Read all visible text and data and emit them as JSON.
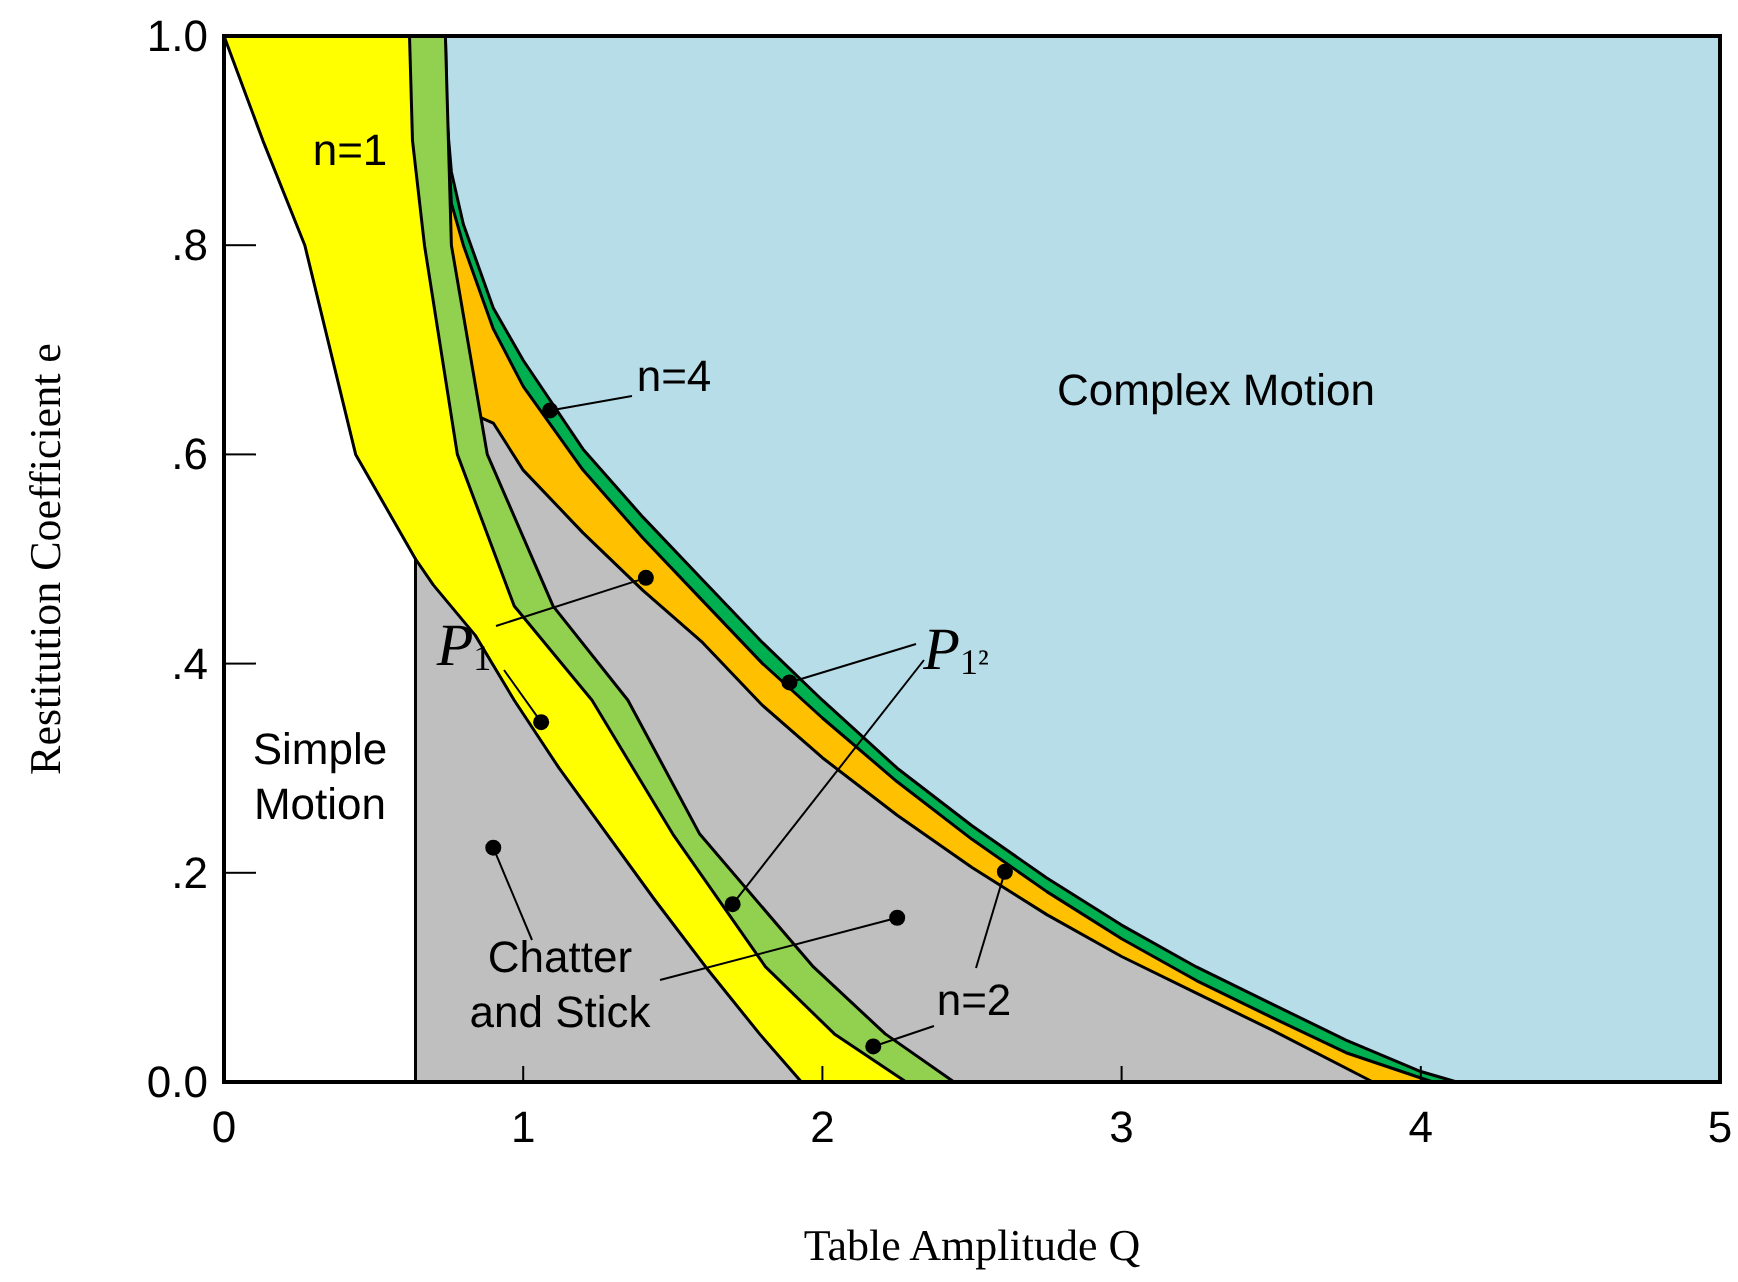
{
  "chart_data": {
    "type": "area",
    "xlabel": "Table Amplitude Q",
    "ylabel": "Restitution Coefficient e",
    "xlim": [
      0,
      5
    ],
    "ylim": [
      0,
      1
    ],
    "xticks": [
      0,
      1,
      2,
      3,
      4,
      5
    ],
    "yticks": [
      {
        "value": 0,
        "label": "0.0"
      },
      {
        "value": 0.2,
        "label": ".2"
      },
      {
        "value": 0.4,
        "label": ".4"
      },
      {
        "value": 0.6,
        "label": ".6"
      },
      {
        "value": 0.8,
        "label": ".8"
      },
      {
        "value": 1,
        "label": "1.0"
      }
    ],
    "series": [
      {
        "color": "#b6dde8",
        "x": [
          0.74,
          5
        ],
        "values": [
          1,
          1
        ]
      },
      {
        "color": "#00b050",
        "x": [
          0.74,
          0.745,
          0.76,
          0.8,
          0.9,
          1.0,
          1.2,
          1.4,
          1.6,
          1.8,
          2.0,
          2.25,
          2.5,
          2.75,
          3.0,
          3.25,
          3.5,
          3.75,
          4.0,
          4.12
        ],
        "values": [
          1,
          0.92,
          0.87,
          0.82,
          0.74,
          0.69,
          0.605,
          0.54,
          0.48,
          0.42,
          0.365,
          0.3,
          0.245,
          0.195,
          0.15,
          0.11,
          0.075,
          0.04,
          0.01,
          0
        ]
      },
      {
        "color": "#ffc000",
        "x": [
          0.745,
          0.76,
          0.8,
          0.9,
          1.0,
          1.2,
          1.4,
          1.6,
          1.8,
          2.0,
          2.25,
          2.5,
          2.75,
          3.0,
          3.25,
          3.5,
          3.75,
          4.04
        ],
        "values": [
          0.92,
          0.84,
          0.8,
          0.72,
          0.665,
          0.585,
          0.52,
          0.46,
          0.4,
          0.348,
          0.287,
          0.232,
          0.182,
          0.137,
          0.097,
          0.062,
          0.028,
          0
        ]
      },
      {
        "color": "#bfbfbf",
        "x": [
          0.86,
          0.9,
          1.0,
          1.2,
          1.4,
          1.6,
          1.8,
          2.0,
          2.25,
          2.5,
          2.75,
          3.0,
          3.25,
          3.5,
          3.84
        ],
        "values": [
          0.635,
          0.63,
          0.585,
          0.525,
          0.47,
          0.42,
          0.36,
          0.31,
          0.255,
          0.205,
          0.16,
          0.12,
          0.085,
          0.05,
          0
        ]
      },
      {
        "color": "#92d050",
        "x": [
          0.62,
          0.74,
          0.75,
          0.76,
          0.88,
          1.1,
          1.35,
          1.59,
          1.97,
          2.21,
          2.44
        ],
        "values": [
          1,
          1,
          0.9,
          0.8,
          0.6,
          0.455,
          0.365,
          0.237,
          0.11,
          0.046,
          0
        ]
      },
      {
        "color": "#ffff00",
        "x": [
          0,
          0.62,
          0.63,
          0.67,
          0.78,
          0.97,
          1.23,
          1.5,
          1.81,
          2.04,
          2.28
        ],
        "values": [
          1,
          1,
          0.9,
          0.8,
          0.6,
          0.455,
          0.365,
          0.237,
          0.11,
          0.046,
          0
        ]
      },
      {
        "color": "#bfbfbf",
        "x": [
          0.64,
          0.7,
          0.84,
          0.97,
          1.12,
          1.28,
          1.44,
          1.61,
          1.79,
          1.93
        ],
        "values": [
          0.5,
          0.475,
          0.427,
          0.365,
          0.3,
          0.237,
          0.174,
          0.11,
          0.046,
          0
        ]
      },
      {
        "color": "#ffffff",
        "x": [
          0,
          0.13,
          0.27,
          0.44,
          0.64
        ],
        "values": [
          1,
          0.9,
          0.8,
          0.6,
          0.5
        ]
      },
      {
        "type": "scatter",
        "color": "#000000",
        "x": [
          1.09,
          1.41,
          1.06,
          1.89,
          1.7,
          0.9,
          2.25,
          2.61,
          2.17
        ],
        "values": [
          0.642,
          0.482,
          0.344,
          0.382,
          0.17,
          0.224,
          0.157,
          0.201,
          0.034
        ]
      }
    ],
    "annotations": [
      "n=1",
      {
        "text": "n=4",
        "x": 1.09,
        "y": 0.642
      },
      "Complex Motion",
      "Simple Motion",
      {
        "text": "Chatter and Stick",
        "x": 0.9,
        "y": 0.224
      },
      {
        "text": "n=2",
        "x": 2.61,
        "y": 0.201
      },
      {
        "text": "P$_{1}$",
        "x": 1.41,
        "y": 0.482
      },
      {
        "text": "P$_{1²}$",
        "x": 1.89,
        "y": 0.382
      }
    ]
  }
}
